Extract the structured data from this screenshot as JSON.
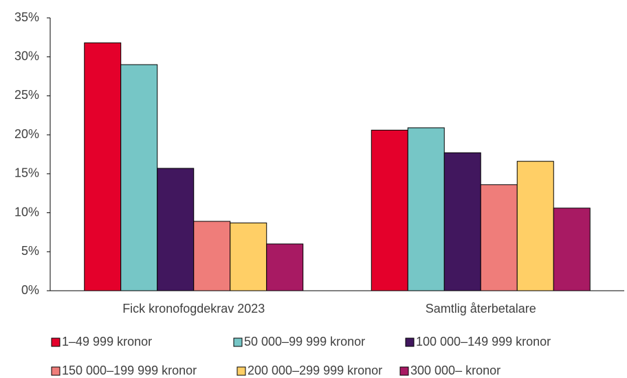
{
  "chart_data": {
    "type": "bar",
    "categories": [
      "Fick kronofogdekrav 2023",
      "Samtlig återbetalare"
    ],
    "series": [
      {
        "name": "1–49 999 kronor",
        "color": "#e4002b",
        "values": [
          31.8,
          20.6
        ]
      },
      {
        "name": "50 000–99 999 kronor",
        "color": "#76c6c6",
        "values": [
          29.0,
          20.9
        ]
      },
      {
        "name": "100 000–149 999 kronor",
        "color": "#41175e",
        "values": [
          15.7,
          17.7
        ]
      },
      {
        "name": "150 000–199 999 kronor",
        "color": "#ef7d7a",
        "values": [
          8.9,
          13.6
        ]
      },
      {
        "name": "200 000–299 999 kronor",
        "color": "#ffcf66",
        "values": [
          8.7,
          16.6
        ]
      },
      {
        "name": "300 000– kronor",
        "color": "#a81a63",
        "values": [
          6.0,
          10.6
        ]
      }
    ],
    "ylim": [
      0,
      35
    ],
    "yticks": [
      {
        "value": 0,
        "label": "0%"
      },
      {
        "value": 5,
        "label": "5%"
      },
      {
        "value": 10,
        "label": "10%"
      },
      {
        "value": 15,
        "label": "15%"
      },
      {
        "value": 20,
        "label": "20%"
      },
      {
        "value": 25,
        "label": "25%"
      },
      {
        "value": 30,
        "label": "30%"
      },
      {
        "value": 35,
        "label": "35%"
      }
    ],
    "grid": false
  }
}
